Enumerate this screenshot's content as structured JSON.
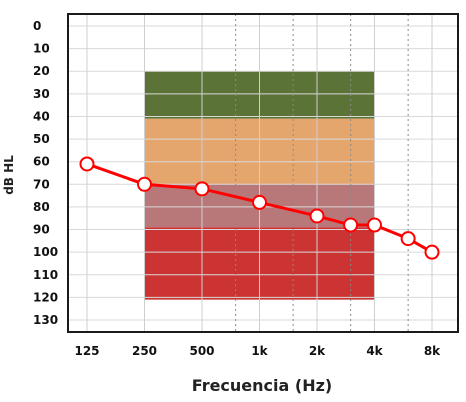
{
  "chart_data": {
    "type": "line",
    "title": "",
    "xlabel": "Frecuencia (Hz)",
    "ylabel": "dB HL",
    "x_scale": "log2",
    "y_inverted": true,
    "ylim": [
      0,
      130
    ],
    "y_ticks": [
      0,
      10,
      20,
      30,
      40,
      50,
      60,
      70,
      80,
      90,
      100,
      110,
      120,
      130
    ],
    "x_ticks": [
      {
        "freq": 125,
        "label": "125"
      },
      {
        "freq": 250,
        "label": "250"
      },
      {
        "freq": 500,
        "label": "500"
      },
      {
        "freq": 1000,
        "label": "1k"
      },
      {
        "freq": 2000,
        "label": "2k"
      },
      {
        "freq": 4000,
        "label": "4k"
      },
      {
        "freq": 8000,
        "label": "8k"
      }
    ],
    "half_octave_freqs": [
      750,
      1500,
      3000,
      6000
    ],
    "bands": [
      {
        "from": 20,
        "to": 41,
        "freq_from": 250,
        "freq_to": 4000,
        "color": "#5b7336"
      },
      {
        "from": 41,
        "to": 70,
        "freq_from": 250,
        "freq_to": 4000,
        "color": "#e4a66d"
      },
      {
        "from": 70,
        "to": 89,
        "freq_from": 250,
        "freq_to": 4000,
        "color": "#b8787a"
      },
      {
        "from": 89,
        "to": 121,
        "freq_from": 250,
        "freq_to": 4000,
        "color": "#cc3434"
      }
    ],
    "series": [
      {
        "color": "#ff0000",
        "marker": "circle",
        "points": [
          {
            "x": 125,
            "y": 61
          },
          {
            "x": 250,
            "y": 70
          },
          {
            "x": 500,
            "y": 72
          },
          {
            "x": 1000,
            "y": 78
          },
          {
            "x": 2000,
            "y": 84
          },
          {
            "x": 3000,
            "y": 88
          },
          {
            "x": 4000,
            "y": 88
          },
          {
            "x": 6000,
            "y": 94
          },
          {
            "x": 8000,
            "y": 100
          }
        ]
      }
    ],
    "grid": true
  }
}
